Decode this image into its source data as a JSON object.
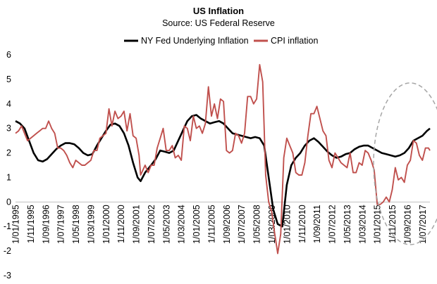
{
  "chart_data": {
    "type": "line",
    "title": "US Inflation",
    "subtitle": "Source: US Federal Reserve",
    "ylim": [
      -3,
      6
    ],
    "y_ticks": [
      "6",
      "5",
      "4",
      "3",
      "2",
      "1",
      "0",
      "-1",
      "-2",
      "-3"
    ],
    "x_range": [
      "1995-01",
      "2017-12"
    ],
    "x_ticks": [
      "1/01/1995",
      "1/11/1995",
      "1/09/1996",
      "1/07/1997",
      "1/05/1998",
      "1/03/1999",
      "1/01/2000",
      "1/11/2000",
      "1/09/2001",
      "1/07/2002",
      "1/05/2003",
      "1/03/2004",
      "1/01/2005",
      "1/11/2005",
      "1/09/2006",
      "1/07/2007",
      "1/05/2008",
      "1/03/2009",
      "1/01/2010",
      "1/11/2010",
      "1/09/2011",
      "1/07/2012",
      "1/05/2013",
      "1/03/2014",
      "1/01/2015",
      "1/11/2015",
      "1/09/2016",
      "1/07/2017"
    ],
    "x_tick_dates": [
      "1995-01",
      "1995-11",
      "1996-09",
      "1997-07",
      "1998-05",
      "1999-03",
      "2000-01",
      "2000-11",
      "2001-09",
      "2002-07",
      "2003-05",
      "2004-03",
      "2005-01",
      "2005-11",
      "2006-09",
      "2007-07",
      "2008-05",
      "2009-03",
      "2010-01",
      "2010-11",
      "2011-09",
      "2012-07",
      "2013-05",
      "2014-03",
      "2015-01",
      "2015-11",
      "2016-09",
      "2017-07"
    ],
    "legend_position": "top",
    "grid": false,
    "annotation": "dashed ellipse highlighting 2015–2017",
    "series": [
      {
        "name": "NY Fed Underlying Inflation",
        "color": "#000000",
        "points": [
          [
            "1995-01",
            3.3
          ],
          [
            "1995-04",
            3.2
          ],
          [
            "1995-07",
            3.0
          ],
          [
            "1995-10",
            2.5
          ],
          [
            "1996-01",
            2.0
          ],
          [
            "1996-04",
            1.7
          ],
          [
            "1996-07",
            1.65
          ],
          [
            "1996-10",
            1.75
          ],
          [
            "1997-01",
            1.95
          ],
          [
            "1997-04",
            2.15
          ],
          [
            "1997-07",
            2.3
          ],
          [
            "1997-10",
            2.4
          ],
          [
            "1998-01",
            2.4
          ],
          [
            "1998-04",
            2.35
          ],
          [
            "1998-07",
            2.2
          ],
          [
            "1998-10",
            2.0
          ],
          [
            "1999-01",
            1.9
          ],
          [
            "1999-04",
            1.95
          ],
          [
            "1999-07",
            2.3
          ],
          [
            "1999-10",
            2.6
          ],
          [
            "2000-01",
            2.9
          ],
          [
            "2000-04",
            3.15
          ],
          [
            "2000-07",
            3.2
          ],
          [
            "2000-10",
            3.1
          ],
          [
            "2001-01",
            2.8
          ],
          [
            "2001-04",
            2.3
          ],
          [
            "2001-07",
            1.6
          ],
          [
            "2001-10",
            1.0
          ],
          [
            "2001-12",
            0.85
          ],
          [
            "2002-03",
            1.2
          ],
          [
            "2002-07",
            1.5
          ],
          [
            "2002-10",
            1.75
          ],
          [
            "2003-01",
            2.1
          ],
          [
            "2003-04",
            2.05
          ],
          [
            "2003-07",
            2.0
          ],
          [
            "2003-10",
            2.1
          ],
          [
            "2004-01",
            2.5
          ],
          [
            "2004-04",
            2.9
          ],
          [
            "2004-07",
            3.3
          ],
          [
            "2004-10",
            3.5
          ],
          [
            "2005-01",
            3.55
          ],
          [
            "2005-04",
            3.4
          ],
          [
            "2005-07",
            3.3
          ],
          [
            "2005-10",
            3.2
          ],
          [
            "2006-01",
            3.25
          ],
          [
            "2006-04",
            3.3
          ],
          [
            "2006-07",
            3.2
          ],
          [
            "2006-10",
            3.0
          ],
          [
            "2007-01",
            2.8
          ],
          [
            "2007-04",
            2.75
          ],
          [
            "2007-07",
            2.7
          ],
          [
            "2007-10",
            2.65
          ],
          [
            "2008-01",
            2.6
          ],
          [
            "2008-04",
            2.65
          ],
          [
            "2008-07",
            2.6
          ],
          [
            "2008-10",
            2.3
          ],
          [
            "2009-01",
            1.0
          ],
          [
            "2009-04",
            -0.3
          ],
          [
            "2009-07",
            -0.9
          ],
          [
            "2009-10",
            -1.0
          ],
          [
            "2010-01",
            0.7
          ],
          [
            "2010-04",
            1.5
          ],
          [
            "2010-07",
            1.8
          ],
          [
            "2010-10",
            2.0
          ],
          [
            "2011-01",
            2.3
          ],
          [
            "2011-04",
            2.5
          ],
          [
            "2011-07",
            2.6
          ],
          [
            "2011-10",
            2.45
          ],
          [
            "2012-01",
            2.25
          ],
          [
            "2012-04",
            2.05
          ],
          [
            "2012-07",
            1.9
          ],
          [
            "2012-10",
            1.8
          ],
          [
            "2013-01",
            1.85
          ],
          [
            "2013-04",
            1.95
          ],
          [
            "2013-07",
            2.0
          ],
          [
            "2013-10",
            2.15
          ],
          [
            "2014-01",
            2.25
          ],
          [
            "2014-04",
            2.3
          ],
          [
            "2014-07",
            2.3
          ],
          [
            "2014-10",
            2.2
          ],
          [
            "2015-01",
            2.1
          ],
          [
            "2015-04",
            2.0
          ],
          [
            "2015-07",
            1.95
          ],
          [
            "2015-10",
            1.9
          ],
          [
            "2016-01",
            1.85
          ],
          [
            "2016-04",
            1.9
          ],
          [
            "2016-07",
            2.0
          ],
          [
            "2016-10",
            2.2
          ],
          [
            "2017-01",
            2.5
          ],
          [
            "2017-04",
            2.6
          ],
          [
            "2017-07",
            2.7
          ],
          [
            "2017-10",
            2.9
          ],
          [
            "2017-12",
            3.0
          ]
        ]
      },
      {
        "name": "CPI inflation",
        "color": "#c0504d",
        "points": [
          [
            "1995-01",
            2.8
          ],
          [
            "1995-03",
            2.9
          ],
          [
            "1995-05",
            3.1
          ],
          [
            "1995-07",
            2.8
          ],
          [
            "1995-09",
            2.5
          ],
          [
            "1995-11",
            2.6
          ],
          [
            "1996-01",
            2.7
          ],
          [
            "1996-03",
            2.8
          ],
          [
            "1996-05",
            2.9
          ],
          [
            "1996-07",
            3.0
          ],
          [
            "1996-09",
            3.0
          ],
          [
            "1996-11",
            3.3
          ],
          [
            "1997-01",
            3.0
          ],
          [
            "1997-03",
            2.8
          ],
          [
            "1997-05",
            2.2
          ],
          [
            "1997-07",
            2.2
          ],
          [
            "1997-09",
            2.1
          ],
          [
            "1997-11",
            1.9
          ],
          [
            "1998-01",
            1.6
          ],
          [
            "1998-03",
            1.4
          ],
          [
            "1998-05",
            1.7
          ],
          [
            "1998-07",
            1.6
          ],
          [
            "1998-09",
            1.5
          ],
          [
            "1998-11",
            1.5
          ],
          [
            "1999-01",
            1.6
          ],
          [
            "1999-03",
            1.7
          ],
          [
            "1999-05",
            2.1
          ],
          [
            "1999-07",
            2.1
          ],
          [
            "1999-09",
            2.6
          ],
          [
            "1999-11",
            2.7
          ],
          [
            "2000-01",
            2.8
          ],
          [
            "2000-03",
            3.8
          ],
          [
            "2000-05",
            3.1
          ],
          [
            "2000-07",
            3.7
          ],
          [
            "2000-09",
            3.4
          ],
          [
            "2000-11",
            3.5
          ],
          [
            "2001-01",
            3.7
          ],
          [
            "2001-03",
            2.9
          ],
          [
            "2001-05",
            3.6
          ],
          [
            "2001-07",
            2.7
          ],
          [
            "2001-09",
            2.6
          ],
          [
            "2001-11",
            1.9
          ],
          [
            "2001-12",
            1.1
          ],
          [
            "2002-03",
            1.5
          ],
          [
            "2002-05",
            1.2
          ],
          [
            "2002-07",
            1.5
          ],
          [
            "2002-09",
            1.5
          ],
          [
            "2002-11",
            2.2
          ],
          [
            "2003-01",
            2.6
          ],
          [
            "2003-03",
            3.0
          ],
          [
            "2003-05",
            2.1
          ],
          [
            "2003-07",
            2.1
          ],
          [
            "2003-09",
            2.3
          ],
          [
            "2003-11",
            1.8
          ],
          [
            "2004-01",
            1.9
          ],
          [
            "2004-03",
            1.7
          ],
          [
            "2004-05",
            3.1
          ],
          [
            "2004-07",
            3.0
          ],
          [
            "2004-09",
            2.5
          ],
          [
            "2004-11",
            3.5
          ],
          [
            "2005-01",
            3.0
          ],
          [
            "2005-03",
            3.1
          ],
          [
            "2005-05",
            2.8
          ],
          [
            "2005-07",
            3.2
          ],
          [
            "2005-09",
            4.7
          ],
          [
            "2005-11",
            3.5
          ],
          [
            "2006-01",
            4.0
          ],
          [
            "2006-03",
            3.4
          ],
          [
            "2006-05",
            4.2
          ],
          [
            "2006-07",
            4.1
          ],
          [
            "2006-09",
            2.1
          ],
          [
            "2006-11",
            2.0
          ],
          [
            "2007-01",
            2.1
          ],
          [
            "2007-03",
            2.8
          ],
          [
            "2007-05",
            2.7
          ],
          [
            "2007-07",
            2.4
          ],
          [
            "2007-09",
            2.8
          ],
          [
            "2007-11",
            4.3
          ],
          [
            "2008-01",
            4.3
          ],
          [
            "2008-03",
            4.0
          ],
          [
            "2008-05",
            4.2
          ],
          [
            "2008-07",
            5.6
          ],
          [
            "2008-09",
            4.9
          ],
          [
            "2008-11",
            1.1
          ],
          [
            "2009-01",
            0.0
          ],
          [
            "2009-03",
            -0.4
          ],
          [
            "2009-05",
            -1.3
          ],
          [
            "2009-07",
            -2.1
          ],
          [
            "2009-09",
            -1.3
          ],
          [
            "2009-11",
            1.8
          ],
          [
            "2010-01",
            2.6
          ],
          [
            "2010-03",
            2.3
          ],
          [
            "2010-05",
            2.0
          ],
          [
            "2010-07",
            1.2
          ],
          [
            "2010-09",
            1.1
          ],
          [
            "2010-11",
            1.1
          ],
          [
            "2011-01",
            1.6
          ],
          [
            "2011-03",
            2.7
          ],
          [
            "2011-05",
            3.6
          ],
          [
            "2011-07",
            3.6
          ],
          [
            "2011-09",
            3.9
          ],
          [
            "2011-11",
            3.4
          ],
          [
            "2012-01",
            2.9
          ],
          [
            "2012-03",
            2.7
          ],
          [
            "2012-05",
            1.7
          ],
          [
            "2012-07",
            1.4
          ],
          [
            "2012-09",
            2.0
          ],
          [
            "2012-11",
            1.8
          ],
          [
            "2013-01",
            1.6
          ],
          [
            "2013-03",
            1.5
          ],
          [
            "2013-05",
            1.4
          ],
          [
            "2013-07",
            2.0
          ],
          [
            "2013-09",
            1.2
          ],
          [
            "2013-11",
            1.2
          ],
          [
            "2014-01",
            1.6
          ],
          [
            "2014-03",
            1.5
          ],
          [
            "2014-05",
            2.1
          ],
          [
            "2014-07",
            2.0
          ],
          [
            "2014-09",
            1.7
          ],
          [
            "2014-11",
            1.3
          ],
          [
            "2015-01",
            -0.1
          ],
          [
            "2015-03",
            -0.1
          ],
          [
            "2015-05",
            0.0
          ],
          [
            "2015-07",
            0.2
          ],
          [
            "2015-09",
            0.0
          ],
          [
            "2015-11",
            0.5
          ],
          [
            "2016-01",
            1.4
          ],
          [
            "2016-03",
            0.9
          ],
          [
            "2016-05",
            1.0
          ],
          [
            "2016-07",
            0.8
          ],
          [
            "2016-09",
            1.5
          ],
          [
            "2016-11",
            1.7
          ],
          [
            "2017-01",
            2.5
          ],
          [
            "2017-03",
            2.4
          ],
          [
            "2017-05",
            1.9
          ],
          [
            "2017-07",
            1.7
          ],
          [
            "2017-09",
            2.2
          ],
          [
            "2017-11",
            2.2
          ],
          [
            "2017-12",
            2.1
          ]
        ]
      }
    ]
  }
}
